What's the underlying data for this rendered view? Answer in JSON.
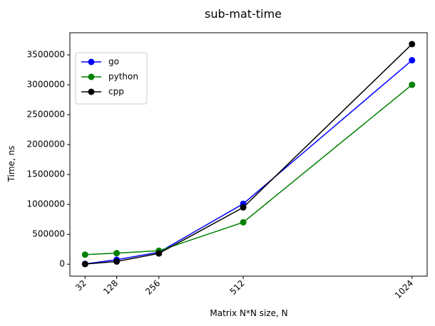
{
  "chart_data": {
    "type": "line",
    "title": "sub-mat-time",
    "xlabel": "Matrix N*N size, N",
    "ylabel": "Time, ns",
    "x": [
      32,
      128,
      256,
      512,
      1024
    ],
    "xticks": [
      "32",
      "128",
      "256",
      "512",
      "1024"
    ],
    "xlim": [
      -14,
      1070
    ],
    "ylim": [
      -200000,
      3870000
    ],
    "yticks": [
      0,
      500000,
      1000000,
      1500000,
      2000000,
      2500000,
      3000000,
      3500000
    ],
    "ytick_labels": [
      "0",
      "500000",
      "1000000",
      "1500000",
      "2000000",
      "2500000",
      "3000000",
      "3500000"
    ],
    "grid": false,
    "legend": "upper-left",
    "series": [
      {
        "name": "go",
        "color": "#0000ff",
        "values": [
          5000,
          75000,
          200000,
          1010000,
          3410000
        ]
      },
      {
        "name": "python",
        "color": "#008000",
        "values": [
          160000,
          185000,
          225000,
          700000,
          3000000
        ]
      },
      {
        "name": "cpp",
        "color": "#000000",
        "values": [
          3000,
          45000,
          180000,
          950000,
          3680000
        ]
      }
    ]
  }
}
